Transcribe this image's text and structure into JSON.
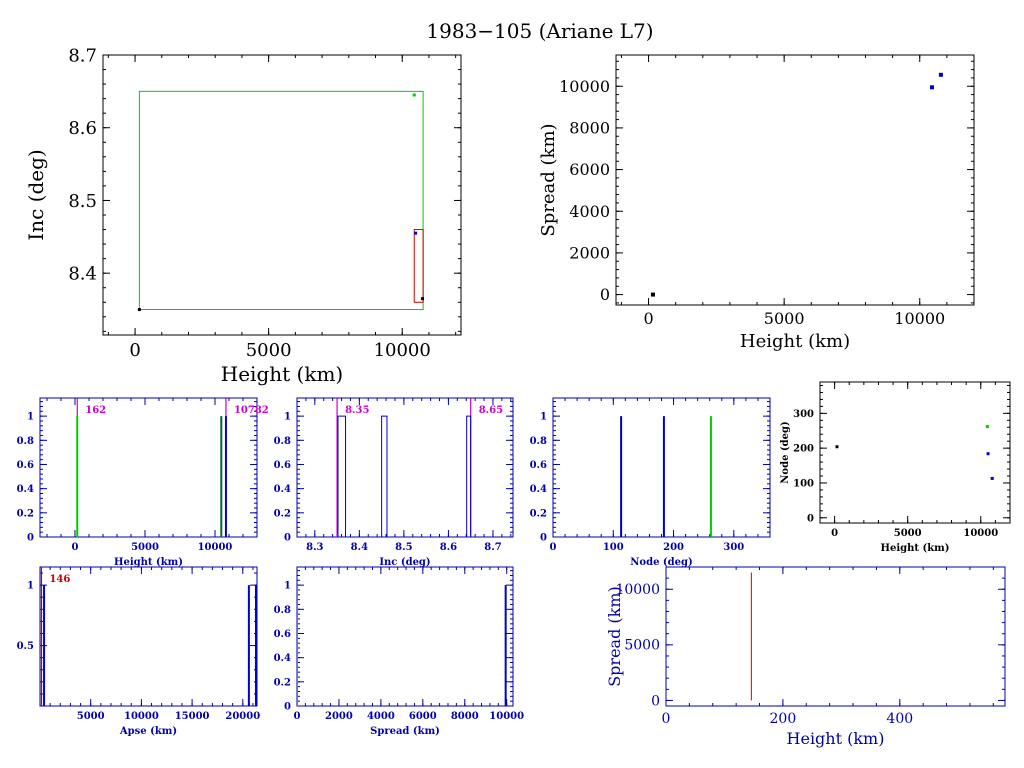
{
  "title": "1983−105 (Ariane L7)",
  "colors": {
    "black": "#000000",
    "blue": "#0000cc",
    "green": "#00cc00",
    "red": "#cc0000",
    "magenta": "#cc00cc",
    "darkgreen": "#006633"
  },
  "chart_data": [
    {
      "id": "inc-vs-height",
      "type": "scatter",
      "xlabel": "Height (km)",
      "ylabel": "Inc (deg)",
      "xlim": [
        -1200,
        12200
      ],
      "ylim": [
        8.315,
        8.7
      ],
      "xticks": [
        0,
        5000,
        10000
      ],
      "yticks": [
        8.4,
        8.5,
        8.6,
        8.7
      ],
      "points": [
        {
          "x": 162,
          "y": 8.35,
          "color": "black"
        },
        {
          "x": 10450,
          "y": 8.645,
          "color": "green"
        },
        {
          "x": 10500,
          "y": 8.455,
          "color": "blue"
        },
        {
          "x": 10760,
          "y": 8.365,
          "color": "black"
        }
      ],
      "boxes": [
        {
          "x0": 162,
          "x1": 10782,
          "y0": 8.35,
          "y1": 8.65,
          "color": "green"
        },
        {
          "x0": 10450,
          "x1": 10782,
          "y0": 8.36,
          "y1": 8.46,
          "color": "red"
        }
      ]
    },
    {
      "id": "spread-vs-height",
      "type": "scatter",
      "xlabel": "Height (km)",
      "ylabel": "Spread (km)",
      "xlim": [
        -1200,
        12000
      ],
      "ylim": [
        -500,
        11500
      ],
      "xticks": [
        0,
        5000,
        10000
      ],
      "yticks": [
        0,
        2000,
        4000,
        6000,
        8000,
        10000
      ],
      "points": [
        {
          "x": 162,
          "y": 0,
          "color": "black"
        },
        {
          "x": 10450,
          "y": 9950,
          "color": "blue"
        },
        {
          "x": 10780,
          "y": 10550,
          "color": "blue"
        }
      ]
    },
    {
      "id": "height-hist",
      "type": "bar",
      "xlabel": "Height (km)",
      "ylabel": "",
      "xlim": [
        -2500,
        13000
      ],
      "ylim": [
        0,
        1.15
      ],
      "xticks": [
        0,
        5000,
        10000
      ],
      "yticks": [
        0,
        0.2,
        0.4,
        0.6,
        0.8,
        1
      ],
      "bars": [
        {
          "x": 162,
          "y": 1,
          "color": "green"
        },
        {
          "x": 10450,
          "y": 1,
          "color": "darkgreen"
        },
        {
          "x": 10782,
          "y": 1,
          "color": "blue"
        }
      ],
      "markers": [
        {
          "x": 162,
          "label": "162"
        },
        {
          "x": 10782,
          "label": "10782"
        }
      ]
    },
    {
      "id": "inc-hist",
      "type": "bar",
      "xlabel": "Inc (deg)",
      "ylabel": "",
      "xlim": [
        8.26,
        8.745
      ],
      "ylim": [
        0,
        1.15
      ],
      "xticks": [
        8.3,
        8.4,
        8.5,
        8.6,
        8.7
      ],
      "yticks": [
        0,
        0.2,
        0.4,
        0.6,
        0.8,
        1
      ],
      "bars": [
        {
          "x0": 8.352,
          "x1": 8.369,
          "y": 1
        },
        {
          "x0": 8.45,
          "x1": 8.462,
          "y": 1
        },
        {
          "x0": 8.641,
          "x1": 8.65,
          "y": 1
        }
      ],
      "markers": [
        {
          "x": 8.35,
          "label": "8.35"
        },
        {
          "x": 8.65,
          "label": "8.65"
        }
      ]
    },
    {
      "id": "node-hist",
      "type": "bar",
      "xlabel": "Node (deg)",
      "ylabel": "",
      "xlim": [
        0,
        360
      ],
      "ylim": [
        0,
        1.15
      ],
      "xticks": [
        0,
        100,
        200,
        300
      ],
      "yticks": [
        0,
        0.2,
        0.4,
        0.6,
        0.8,
        1
      ],
      "bars": [
        {
          "x": 113,
          "y": 1,
          "color": "blue"
        },
        {
          "x": 184,
          "y": 1,
          "color": "blue"
        },
        {
          "x": 262,
          "y": 1,
          "color": "green"
        }
      ]
    },
    {
      "id": "node-vs-height",
      "type": "scatter",
      "xlabel": "Height (km)",
      "ylabel": "Node (deg)",
      "xlim": [
        -1000,
        12000
      ],
      "ylim": [
        -15,
        390
      ],
      "xticks": [
        0,
        5000,
        10000
      ],
      "yticks": [
        0,
        100,
        200,
        300
      ],
      "points": [
        {
          "x": 162,
          "y": 204,
          "color": "black"
        },
        {
          "x": 10450,
          "y": 262,
          "color": "green"
        },
        {
          "x": 10500,
          "y": 184,
          "color": "blue"
        },
        {
          "x": 10782,
          "y": 113,
          "color": "blue"
        }
      ]
    },
    {
      "id": "apse-hist",
      "type": "bar",
      "xlabel": "Apse (km)",
      "ylabel": "",
      "xlim": [
        0,
        21400
      ],
      "ylim": [
        0,
        1.15
      ],
      "xticks": [
        5000,
        10000,
        15000,
        20000
      ],
      "yticks": [
        0.5,
        1
      ],
      "bars": [
        {
          "x": 400,
          "y": 1,
          "color": "blue"
        },
        {
          "x": 20600,
          "y": 1,
          "color": "blue"
        },
        {
          "x": 21300,
          "y": 1,
          "color": "blue"
        }
      ],
      "markers": [
        {
          "x": 146,
          "label": "146",
          "color": "red"
        }
      ]
    },
    {
      "id": "spread-hist",
      "type": "bar",
      "xlabel": "Spread (km)",
      "ylabel": "",
      "xlim": [
        0,
        10300
      ],
      "ylim": [
        0,
        1.15
      ],
      "xticks": [
        0,
        2000,
        4000,
        6000,
        8000,
        10000
      ],
      "yticks": [
        0,
        0.2,
        0.4,
        0.6,
        0.8,
        1
      ],
      "bars": [
        {
          "x": 0,
          "y": 1,
          "color": "green"
        },
        {
          "x": 9950,
          "y": 1,
          "color": "blue"
        }
      ]
    },
    {
      "id": "spread-vs-height-zoom",
      "type": "scatter",
      "xlabel": "Height (km)",
      "ylabel": "Spread (km)",
      "xlim": [
        0,
        580
      ],
      "ylim": [
        -500,
        12000
      ],
      "xticks": [
        0,
        200,
        400
      ],
      "yticks": [
        0,
        5000,
        10000
      ],
      "lines": [
        {
          "x": 146,
          "y0": 0,
          "y1": 11500,
          "color": "red"
        }
      ]
    }
  ]
}
